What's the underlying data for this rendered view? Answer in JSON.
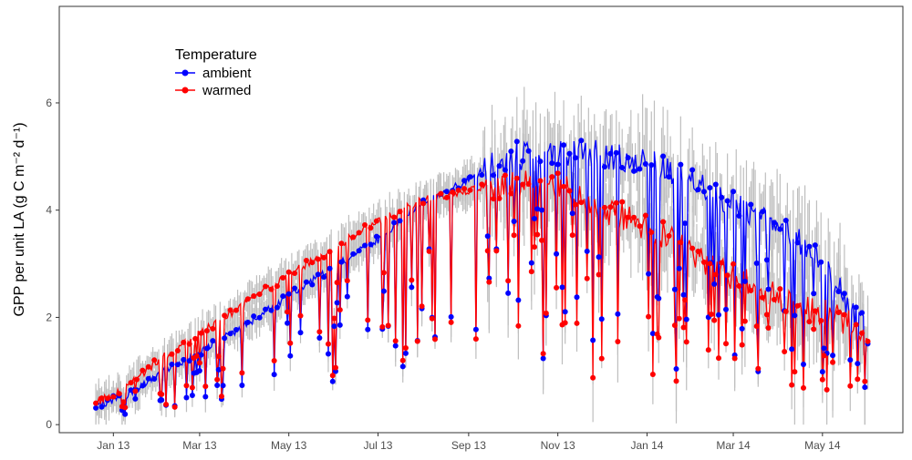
{
  "chart_data": {
    "type": "line",
    "title": "",
    "xlabel": "",
    "ylabel": "GPP per unit LA (g C m⁻² d⁻¹)",
    "x_ticks": [
      "Jan 13",
      "Mar 13",
      "May 13",
      "Jul 13",
      "Sep 13",
      "Nov 13",
      "Jan 14",
      "Mar 14",
      "May 14"
    ],
    "y_ticks": [
      "0",
      "2",
      "4",
      "6"
    ],
    "xlim": [
      "2012-11-25",
      "2014-06-25"
    ],
    "ylim": [
      -0.15,
      7.8
    ],
    "grid": false,
    "legend": {
      "title": "Temperature",
      "position": "top-left",
      "entries": [
        "ambient",
        "warmed"
      ]
    },
    "error_bar_color": "#bebebe",
    "trend_note": "daily series with grey error bars; approximate anchor values read off the chart",
    "series": [
      {
        "name": "ambient",
        "color": "#0000ff",
        "x": [
          "2012-12-20",
          "2013-01-10",
          "2013-02-01",
          "2013-03-01",
          "2013-04-01",
          "2013-05-01",
          "2013-06-01",
          "2013-07-01",
          "2013-08-01",
          "2013-09-01",
          "2013-09-15",
          "2013-10-01",
          "2013-11-01",
          "2013-12-01",
          "2014-01-01",
          "2014-02-01",
          "2014-03-01",
          "2014-04-01",
          "2014-05-01",
          "2014-06-01"
        ],
        "y": [
          0.35,
          0.55,
          0.95,
          1.35,
          1.85,
          2.4,
          2.95,
          3.45,
          4.15,
          4.55,
          4.8,
          5.0,
          5.1,
          5.05,
          4.9,
          4.5,
          4.1,
          3.7,
          3.0,
          1.7
        ]
      },
      {
        "name": "warmed",
        "color": "#ff0000",
        "x": [
          "2012-12-20",
          "2013-01-10",
          "2013-02-01",
          "2013-03-01",
          "2013-04-01",
          "2013-05-01",
          "2013-06-01",
          "2013-07-01",
          "2013-08-01",
          "2013-09-01",
          "2013-09-15",
          "2013-10-01",
          "2013-11-01",
          "2013-12-01",
          "2014-01-01",
          "2014-02-01",
          "2014-03-01",
          "2014-04-01",
          "2014-05-01",
          "2014-06-01"
        ],
        "y": [
          0.4,
          0.7,
          1.2,
          1.7,
          2.25,
          2.8,
          3.3,
          3.8,
          4.2,
          4.35,
          4.45,
          4.5,
          4.45,
          4.05,
          3.7,
          3.2,
          2.75,
          2.35,
          2.1,
          1.7
        ]
      }
    ]
  }
}
